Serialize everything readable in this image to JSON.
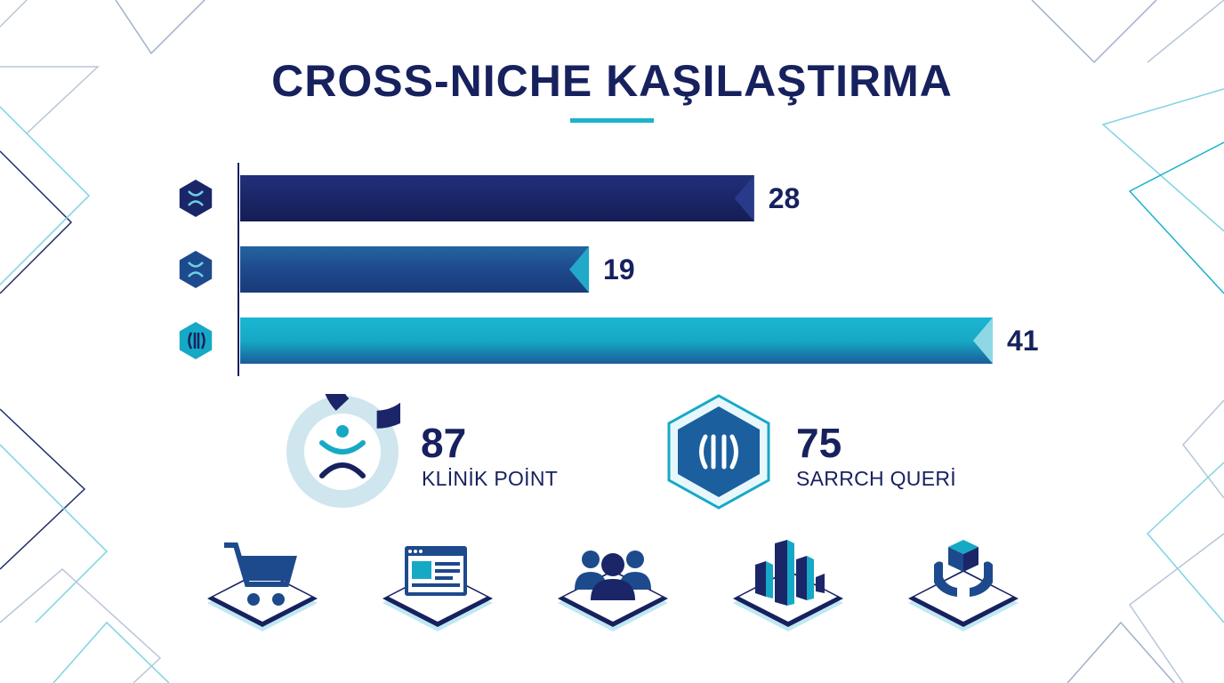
{
  "title": "CROSS-NICHE KAŞILAŞTIRMA",
  "colors": {
    "navy": "#17215e",
    "mid_blue": "#1d4a8c",
    "teal": "#16a9c6",
    "accent": "#1cb2cc"
  },
  "chart_data": {
    "type": "bar",
    "orientation": "horizontal",
    "title": "CROSS-NICHE KAŞILAŞTIRMA",
    "values": [
      28,
      19,
      41
    ],
    "data_labels": [
      "28",
      "19",
      "41"
    ],
    "bar_icons": [
      "double-arc-icon",
      "double-arc-icon",
      "parentheses-icon"
    ],
    "bar_colors": [
      "#1b2669",
      "#1d4a8c",
      "#16a9c6"
    ],
    "xlim": [
      0,
      41
    ],
    "grid": false,
    "legend": "none"
  },
  "kpis": [
    {
      "value": "87",
      "label": "KLİNİK POİNT",
      "icon": "ring-gauge-icon",
      "fraction": 0.87
    },
    {
      "value": "75",
      "label": "SARRCH QUERİ",
      "icon": "hexagon-parentheses-icon"
    }
  ],
  "category_icons": [
    "shopping-cart-icon",
    "browser-window-icon",
    "people-group-icon",
    "building-bars-icon",
    "hands-cube-icon"
  ]
}
